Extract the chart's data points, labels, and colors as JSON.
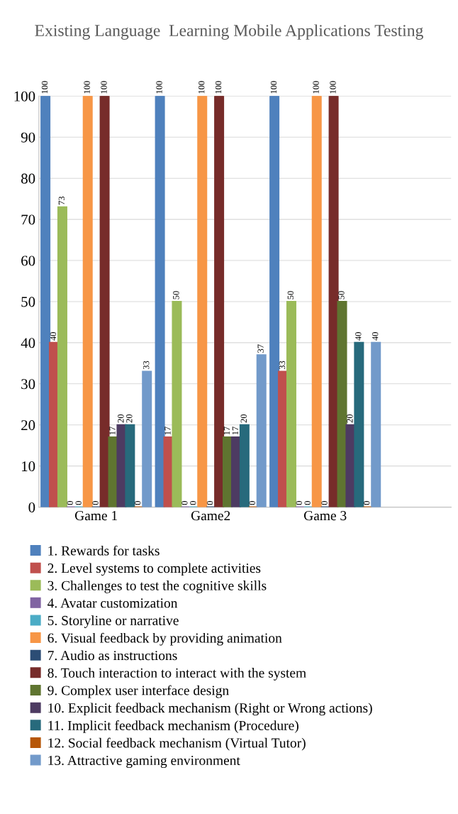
{
  "chart_data": {
    "type": "bar",
    "title": "Existing Language  Learning Mobile Applications Testing",
    "categories": [
      "Game 1",
      "Game2",
      "Game 3"
    ],
    "series": [
      {
        "name": "1. Rewards for tasks",
        "color": "#4f81bd",
        "values": [
          100,
          100,
          100
        ]
      },
      {
        "name": "2. Level systems to complete activities",
        "color": "#c0504d",
        "values": [
          40,
          17,
          33
        ]
      },
      {
        "name": "3. Challenges to test the cognitive skills",
        "color": "#9bbb59",
        "values": [
          73,
          50,
          50
        ]
      },
      {
        "name": "4. Avatar customization",
        "color": "#8064a2",
        "values": [
          0,
          0,
          0
        ]
      },
      {
        "name": "5. Storyline or narrative",
        "color": "#4bacc6",
        "values": [
          0,
          0,
          0
        ]
      },
      {
        "name": "6. Visual feedback by providing animation",
        "color": "#f79646",
        "values": [
          100,
          100,
          100
        ]
      },
      {
        "name": "7. Audio as instructions",
        "color": "#2c4d75",
        "values": [
          0,
          0,
          0
        ]
      },
      {
        "name": "8. Touch interaction to interact with the system",
        "color": "#772c2a",
        "values": [
          100,
          100,
          100
        ]
      },
      {
        "name": "9. Complex user interface design",
        "color": "#5f7530",
        "values": [
          17,
          17,
          50
        ]
      },
      {
        "name": "10. Explicit feedback mechanism (Right or Wrong actions)",
        "color": "#4d3b62",
        "values": [
          20,
          17,
          20
        ]
      },
      {
        "name": "11. Implicit feedback mechanism (Procedure)",
        "color": "#276a7c",
        "values": [
          20,
          20,
          40
        ]
      },
      {
        "name": "12. Social feedback mechanism (Virtual Tutor)",
        "color": "#b65708",
        "values": [
          0,
          0,
          0
        ]
      },
      {
        "name": "13. Attractive gaming environment",
        "color": "#729aca",
        "values": [
          33,
          37,
          40
        ]
      }
    ],
    "ylim": [
      0,
      100
    ],
    "yticks": [
      0,
      10,
      20,
      30,
      40,
      50,
      60,
      70,
      80,
      90,
      100
    ],
    "grid": "y",
    "legend": "bottom",
    "data_labels": true
  }
}
